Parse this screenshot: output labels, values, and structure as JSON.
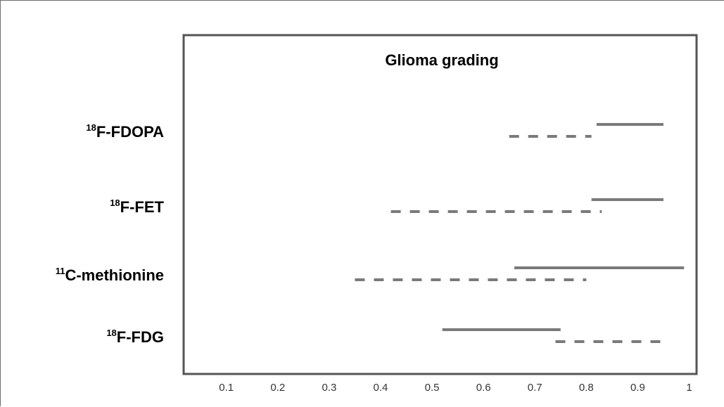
{
  "chart_data": {
    "type": "range",
    "title": "Glioma grading",
    "xlabel": "",
    "ylabel": "",
    "xlim": [
      0,
      1
    ],
    "x_ticks": [
      "0.1",
      "0.2",
      "0.3",
      "0.4",
      "0.5",
      "0.6",
      "0.7",
      "0.8",
      "0.9",
      "1"
    ],
    "grid": false,
    "legend": null,
    "line_color": "#7a7a7a",
    "categories": [
      {
        "sup": "18",
        "name": "F-FDOPA",
        "solid_range": [
          0.82,
          0.95
        ],
        "dashed_range": [
          0.65,
          0.81
        ]
      },
      {
        "sup": "18",
        "name": "F-FET",
        "solid_range": [
          0.81,
          0.95
        ],
        "dashed_range": [
          0.42,
          0.83
        ]
      },
      {
        "sup": "11",
        "name": "C-methionine",
        "solid_range": [
          0.66,
          0.99
        ],
        "dashed_range": [
          0.35,
          0.8
        ]
      },
      {
        "sup": "18",
        "name": "F-FDG",
        "solid_range": [
          0.52,
          0.75
        ],
        "dashed_range": [
          0.74,
          0.95
        ]
      }
    ]
  }
}
